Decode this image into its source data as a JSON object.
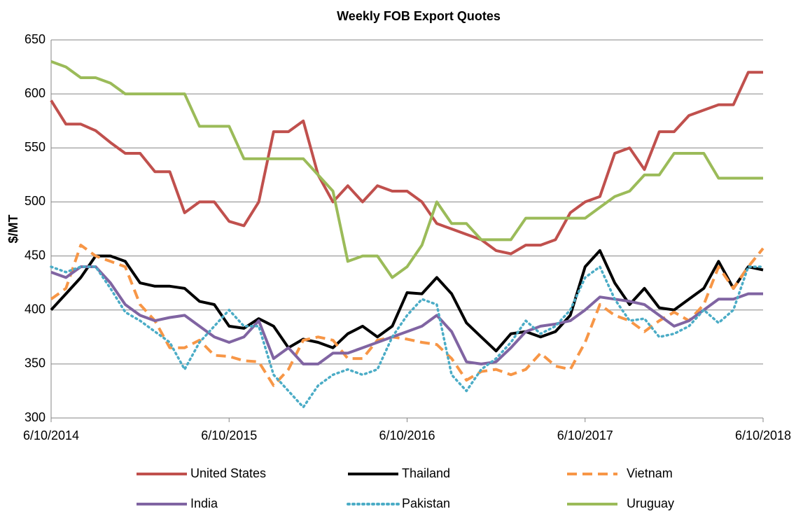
{
  "chart_data": {
    "type": "line",
    "title": "Weekly FOB Export Quotes",
    "ylabel": "$/MT",
    "categories": [
      "6/10/2014",
      null,
      null,
      null,
      null,
      null,
      null,
      null,
      null,
      null,
      null,
      null,
      "6/10/2015",
      null,
      null,
      null,
      null,
      null,
      null,
      null,
      null,
      null,
      null,
      null,
      "6/10/2016",
      null,
      null,
      null,
      null,
      null,
      null,
      null,
      null,
      null,
      null,
      null,
      "6/10/2017",
      null,
      null,
      null,
      null,
      null,
      null,
      null,
      null,
      null,
      null,
      null,
      "6/10/2018"
    ],
    "ylim": [
      300,
      650
    ],
    "yticks": [
      300,
      350,
      400,
      450,
      500,
      550,
      600,
      650
    ],
    "grid": true,
    "legend": "bottom",
    "series": [
      {
        "name": "United States",
        "color": "#c0504d",
        "style": "solid",
        "values": [
          594,
          572,
          572,
          566,
          555,
          545,
          545,
          528,
          528,
          490,
          500,
          500,
          482,
          478,
          500,
          565,
          565,
          575,
          525,
          500,
          515,
          500,
          515,
          510,
          510,
          500,
          480,
          475,
          470,
          465,
          455,
          452,
          460,
          460,
          465,
          490,
          500,
          505,
          545,
          550,
          530,
          565,
          565,
          580,
          585,
          590,
          590,
          620,
          620
        ]
      },
      {
        "name": "Thailand",
        "color": "#000000",
        "style": "solid",
        "values": [
          400,
          415,
          430,
          450,
          450,
          445,
          425,
          422,
          422,
          420,
          408,
          405,
          385,
          383,
          392,
          385,
          365,
          373,
          370,
          365,
          378,
          385,
          375,
          385,
          416,
          415,
          430,
          415,
          388,
          375,
          362,
          378,
          380,
          375,
          380,
          395,
          440,
          455,
          425,
          405,
          420,
          402,
          400,
          410,
          420,
          445,
          420,
          440,
          437
        ]
      },
      {
        "name": "Vietnam",
        "color": "#f79646",
        "style": "dashed",
        "values": [
          410,
          420,
          460,
          450,
          445,
          440,
          405,
          390,
          365,
          365,
          372,
          358,
          357,
          353,
          352,
          330,
          345,
          372,
          375,
          372,
          355,
          355,
          372,
          375,
          373,
          370,
          368,
          355,
          335,
          343,
          345,
          340,
          345,
          360,
          348,
          345,
          370,
          405,
          395,
          390,
          380,
          390,
          398,
          390,
          405,
          440,
          420,
          440,
          457
        ]
      },
      {
        "name": "India",
        "color": "#8064a2",
        "style": "solid",
        "values": [
          435,
          430,
          440,
          440,
          425,
          405,
          395,
          390,
          393,
          395,
          385,
          375,
          370,
          375,
          390,
          355,
          365,
          350,
          350,
          360,
          360,
          365,
          370,
          375,
          380,
          385,
          395,
          380,
          352,
          350,
          352,
          365,
          380,
          385,
          387,
          390,
          400,
          412,
          410,
          408,
          405,
          395,
          385,
          390,
          400,
          410,
          410,
          415,
          415
        ]
      },
      {
        "name": "Pakistan",
        "color": "#4bacc6",
        "style": "dotted",
        "values": [
          440,
          435,
          440,
          440,
          420,
          398,
          390,
          380,
          370,
          345,
          370,
          385,
          400,
          385,
          385,
          340,
          325,
          310,
          330,
          340,
          345,
          340,
          345,
          375,
          395,
          410,
          405,
          340,
          325,
          345,
          355,
          370,
          390,
          378,
          385,
          400,
          430,
          440,
          410,
          390,
          392,
          375,
          378,
          385,
          400,
          388,
          400,
          440,
          440
        ]
      },
      {
        "name": "Uruguay",
        "color": "#9bbb59",
        "style": "solid",
        "values": [
          630,
          625,
          615,
          615,
          610,
          600,
          600,
          600,
          600,
          600,
          570,
          570,
          570,
          540,
          540,
          540,
          540,
          540,
          525,
          510,
          445,
          450,
          450,
          430,
          440,
          460,
          500,
          480,
          480,
          465,
          465,
          465,
          485,
          485,
          485,
          485,
          485,
          495,
          505,
          510,
          525,
          525,
          545,
          545,
          545,
          522,
          522,
          522,
          522
        ]
      }
    ]
  }
}
